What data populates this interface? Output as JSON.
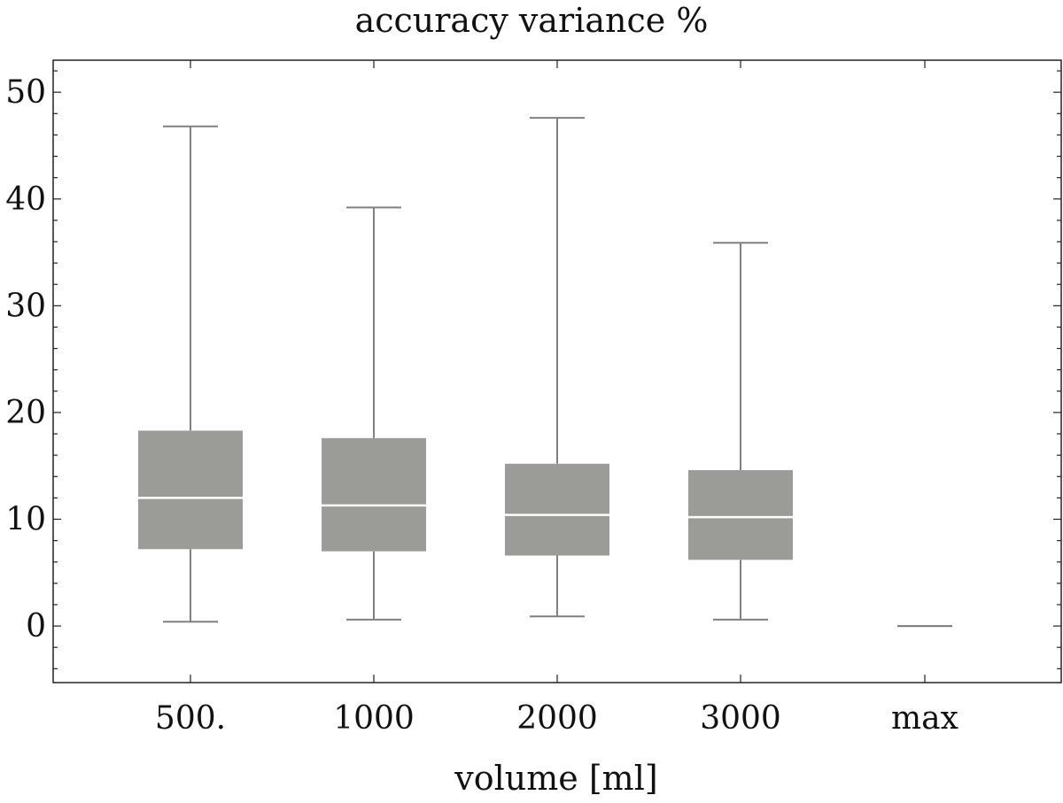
{
  "chart_data": {
    "type": "box",
    "title": "accuracy variance %",
    "xlabel": "volume [ml]",
    "ylabel": "",
    "categories": [
      "500.",
      "1000",
      "2000",
      "3000",
      "max"
    ],
    "ylim": [
      -5.3,
      53
    ],
    "yticks": [
      0,
      10,
      20,
      30,
      40,
      50
    ],
    "grid": false,
    "legend": "none",
    "box_color": "#9b9c97",
    "whisker_color": "#808080",
    "median_color": "#ffffff",
    "boxes": [
      {
        "category": "500.",
        "min": 0.4,
        "q1": 7.2,
        "median": 12.0,
        "q3": 18.3,
        "max": 46.8
      },
      {
        "category": "1000",
        "min": 0.6,
        "q1": 7.0,
        "median": 11.3,
        "q3": 17.6,
        "max": 39.2
      },
      {
        "category": "2000",
        "min": 0.9,
        "q1": 6.6,
        "median": 10.4,
        "q3": 15.2,
        "max": 47.6
      },
      {
        "category": "3000",
        "min": 0.6,
        "q1": 6.2,
        "median": 10.2,
        "q3": 14.6,
        "max": 35.9
      },
      {
        "category": "max",
        "min": 0.0,
        "q1": 0.0,
        "median": 0.0,
        "q3": 0.0,
        "max": 0.0
      }
    ]
  }
}
